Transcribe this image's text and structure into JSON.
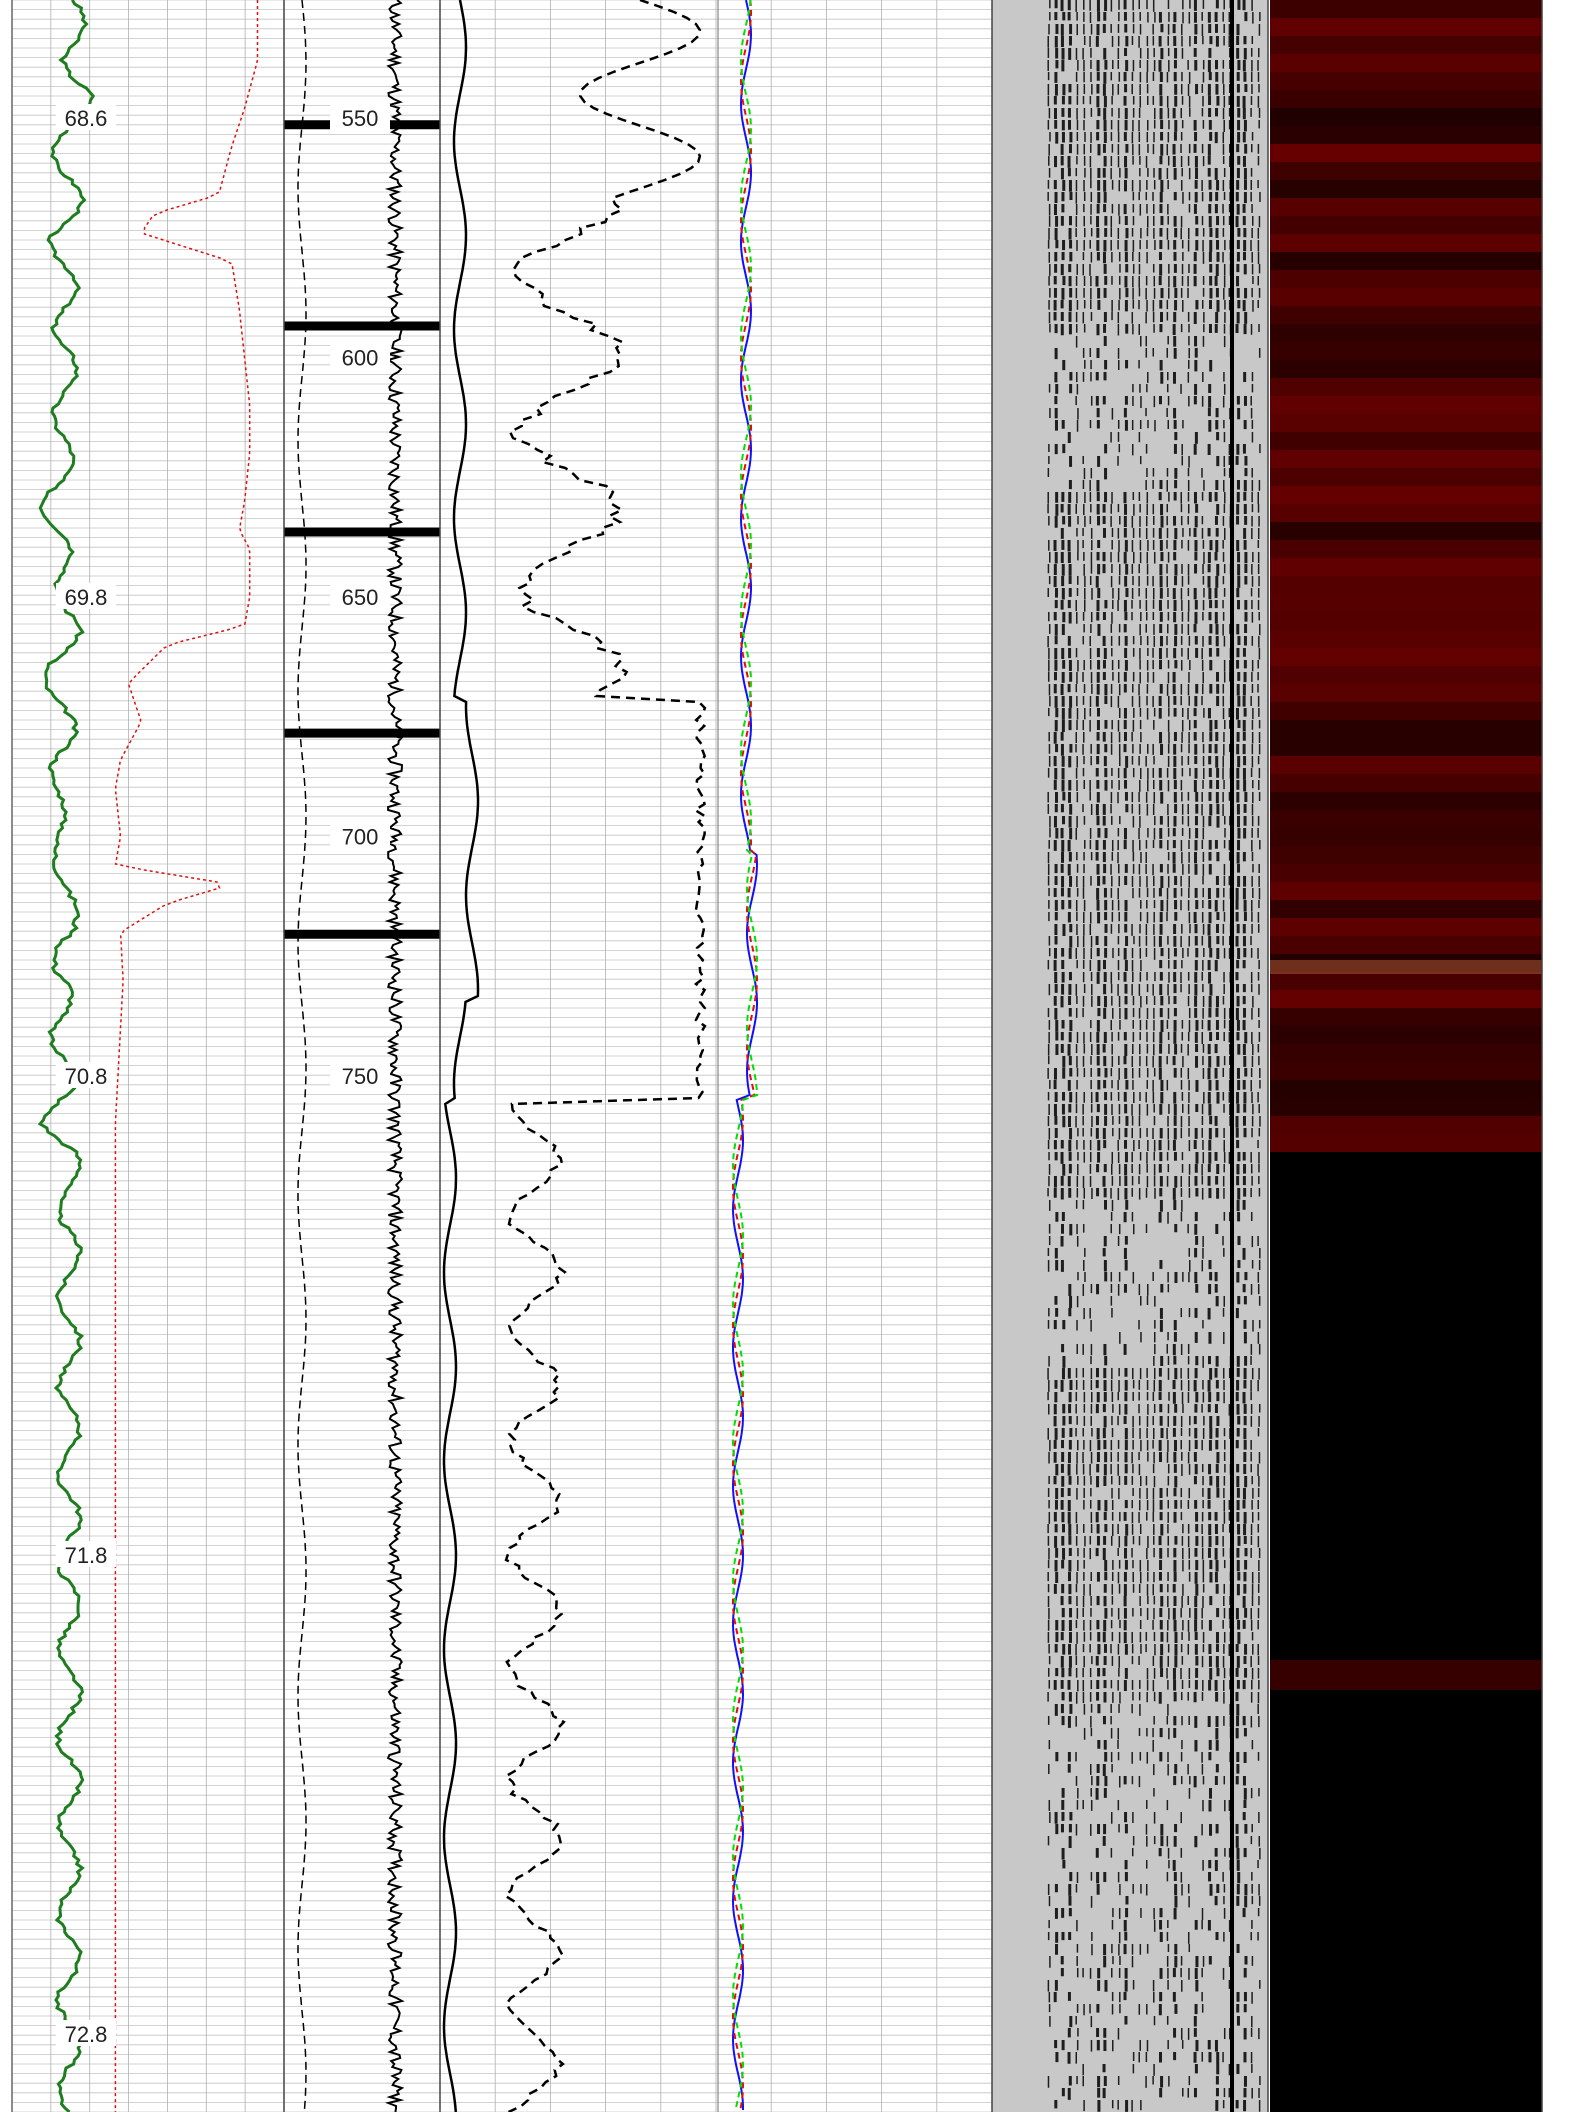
{
  "colors": {
    "gamma_ray": "#1e7d1e",
    "resistivity": "#e01010",
    "cbl_amplitude": "#000000",
    "travel_time": "#000000",
    "casing_collar": "#000000",
    "caliper_1": "#1010ff",
    "caliper_2": "#e01010",
    "caliper_3": "#00e000",
    "vdl_background": "#c8c8c8",
    "cement_map_background": "#000000",
    "cement_map_highlight": "#7a0000"
  },
  "chart_data": {
    "type": "line",
    "title": "",
    "tracks": [
      {
        "name": "track-1",
        "scale_labels": [
          {
            "label": "68.6",
            "depth": 68.6
          },
          {
            "label": "69.8",
            "depth": 69.8
          },
          {
            "label": "70.8",
            "depth": 70.8
          },
          {
            "label": "71.8",
            "depth": 71.8
          },
          {
            "label": "72.8",
            "depth": 72.8
          }
        ]
      },
      {
        "name": "track-2",
        "scale_labels": [
          {
            "label": "550",
            "depth": 550
          },
          {
            "label": "600",
            "depth": 600
          },
          {
            "label": "650",
            "depth": 650
          },
          {
            "label": "700",
            "depth": 700
          },
          {
            "label": "750",
            "depth": 750
          }
        ]
      }
    ],
    "depth_range": [
      538,
      766
    ],
    "curves_note_units": "relative amplitude 0-1 across track width",
    "gamma_ray": {
      "depth": [
        538,
        545,
        552,
        560,
        568,
        576,
        584,
        592,
        600,
        608,
        616,
        624,
        632,
        640,
        648,
        656,
        664,
        672,
        680,
        688,
        696,
        704,
        712,
        720,
        728,
        736,
        744,
        752,
        760,
        766
      ],
      "value": [
        0.45,
        0.55,
        0.4,
        0.38,
        0.45,
        0.35,
        0.4,
        0.38,
        0.42,
        0.36,
        0.4,
        0.35,
        0.3,
        0.36,
        0.4,
        0.45,
        0.3,
        0.35,
        0.4,
        0.36,
        0.3,
        0.4,
        0.35,
        0.5,
        0.3,
        0.4,
        0.35,
        0.4,
        0.3,
        0.42
      ]
    },
    "resistivity": {
      "depth": [
        538,
        548,
        556,
        566,
        570,
        574,
        580,
        590,
        600,
        610,
        620,
        630,
        636,
        640,
        650,
        656,
        660,
        668,
        676,
        684,
        690,
        700,
        706,
        710,
        714,
        720,
        730,
        740,
        750,
        760,
        766
      ],
      "value": [
        0.95,
        0.9,
        0.85,
        0.8,
        0.55,
        0.5,
        0.85,
        0.88,
        0.9,
        0.92,
        0.92,
        0.9,
        0.88,
        0.92,
        0.92,
        0.9,
        0.6,
        0.45,
        0.5,
        0.42,
        0.4,
        0.42,
        0.4,
        0.85,
        0.6,
        0.42,
        0.43,
        0.42,
        0.41,
        0.4,
        0.4
      ]
    },
    "collars": [
      551,
      593,
      636,
      678,
      720
    ]
  }
}
